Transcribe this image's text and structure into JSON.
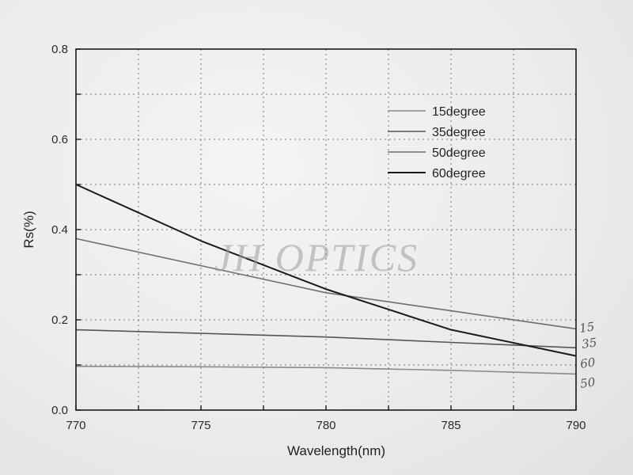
{
  "chart_data": {
    "type": "line",
    "xlabel": "Wavelength(nm)",
    "ylabel": "Rs(%)",
    "xlim": [
      770,
      790
    ],
    "ylim": [
      0.0,
      0.8
    ],
    "x_ticks": [
      "770",
      "775",
      "780",
      "785",
      "790"
    ],
    "y_ticks": [
      "0.0",
      "0.2",
      "0.4",
      "0.6",
      "0.8"
    ],
    "grid": true,
    "legend_position": "top-right",
    "series": [
      {
        "name": "15degree",
        "color": "#8a8a8a",
        "x": [
          770,
          775,
          780,
          785,
          790
        ],
        "y": [
          0.097,
          0.096,
          0.094,
          0.088,
          0.08
        ]
      },
      {
        "name": "35degree",
        "color": "#555555",
        "x": [
          770,
          775,
          780,
          785,
          790
        ],
        "y": [
          0.178,
          0.17,
          0.162,
          0.15,
          0.138
        ]
      },
      {
        "name": "50degree",
        "color": "#6e6e6e",
        "x": [
          770,
          775,
          780,
          785,
          790
        ],
        "y": [
          0.38,
          0.32,
          0.26,
          0.22,
          0.18
        ]
      },
      {
        "name": "60degree",
        "color": "#1a1a1a",
        "x": [
          770,
          775,
          780,
          785,
          790
        ],
        "y": [
          0.5,
          0.375,
          0.268,
          0.178,
          0.12
        ]
      }
    ]
  },
  "watermark": "JH OPTICS",
  "handwritten_notes": [
    "15",
    "35",
    "60",
    "50"
  ]
}
